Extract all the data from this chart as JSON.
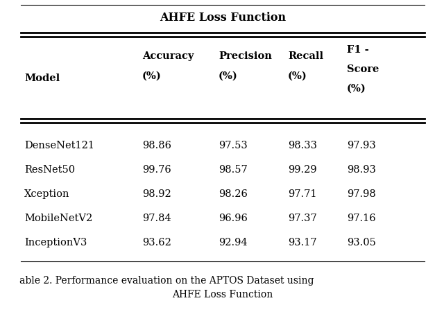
{
  "title": "AHFE Loss Function",
  "caption_line1": "able 2. Performance evaluation on the APTOS Dataset using",
  "caption_line2": "AHFE Loss Function",
  "rows": [
    [
      "DenseNet121",
      "98.86",
      "97.53",
      "98.33",
      "97.93"
    ],
    [
      "ResNet50",
      "99.76",
      "98.57",
      "99.29",
      "98.93"
    ],
    [
      "Xception",
      "98.92",
      "98.26",
      "97.71",
      "97.98"
    ],
    [
      "MobileNetV2",
      "97.84",
      "96.96",
      "97.37",
      "97.16"
    ],
    [
      "InceptionV3",
      "93.62",
      "92.94",
      "93.17",
      "93.05"
    ]
  ],
  "background_color": "#ffffff",
  "text_color": "#000000",
  "font_size": 10.5,
  "header_font_size": 10.5,
  "title_font_size": 11.5,
  "caption_font_size": 10
}
